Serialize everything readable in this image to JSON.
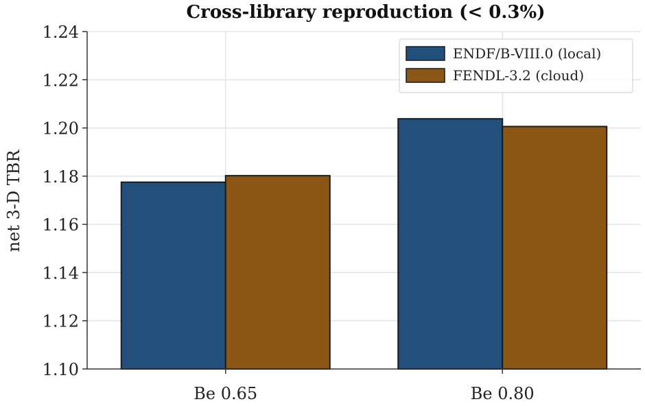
{
  "chart_data": {
    "type": "bar",
    "title": "Cross-library reproduction (< 0.3%)",
    "xlabel": "",
    "ylabel": "net 3-D TBR",
    "categories": [
      "Be 0.65",
      "Be 0.80"
    ],
    "series": [
      {
        "name": "ENDF/B-VIII.0 (local)",
        "color": "#23507a",
        "values": [
          1.1775,
          1.2038
        ]
      },
      {
        "name": "FENDL-3.2 (cloud)",
        "color": "#8b5716",
        "values": [
          1.1802,
          1.2006
        ]
      }
    ],
    "ylim": [
      1.1,
      1.24
    ],
    "yticks": [
      "1.10",
      "1.12",
      "1.14",
      "1.16",
      "1.18",
      "1.20",
      "1.22",
      "1.24"
    ],
    "grid": true,
    "legend_position": "top-right"
  }
}
